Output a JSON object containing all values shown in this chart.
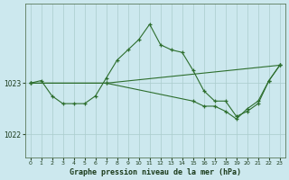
{
  "title": "Graphe pression niveau de la mer (hPa)",
  "background_color": "#cce8ee",
  "grid_color": "#aacccc",
  "line_color": "#2d6e2d",
  "marker_color": "#2d6e2d",
  "xlim": [
    -0.5,
    23.5
  ],
  "ylim": [
    1021.55,
    1024.55
  ],
  "yticks": [
    1022,
    1023
  ],
  "xticks": [
    0,
    1,
    2,
    3,
    4,
    5,
    6,
    7,
    8,
    9,
    10,
    11,
    12,
    13,
    14,
    15,
    16,
    17,
    18,
    19,
    20,
    21,
    22,
    23
  ],
  "series": [
    {
      "x": [
        0,
        1,
        2,
        3,
        4,
        5,
        6,
        7,
        8,
        9,
        10,
        11,
        12,
        13,
        14,
        15,
        16,
        17,
        18,
        19,
        20,
        21,
        22,
        23
      ],
      "y": [
        1023.0,
        1023.05,
        1022.75,
        1022.6,
        1022.6,
        1022.6,
        1022.75,
        1023.1,
        1023.45,
        1023.65,
        1023.85,
        1024.15,
        1023.75,
        1023.65,
        1023.6,
        1023.25,
        1022.85,
        1022.65,
        1022.65,
        1022.35,
        1022.45,
        1022.6,
        1023.05,
        1023.35
      ]
    },
    {
      "x": [
        0,
        7,
        15,
        16,
        17,
        18,
        19,
        20,
        21,
        22,
        23
      ],
      "y": [
        1023.0,
        1023.0,
        1022.65,
        1022.55,
        1022.55,
        1022.45,
        1022.3,
        1022.5,
        1022.65,
        1023.05,
        1023.35
      ]
    },
    {
      "x": [
        0,
        7,
        23
      ],
      "y": [
        1023.0,
        1023.0,
        1023.35
      ]
    }
  ]
}
